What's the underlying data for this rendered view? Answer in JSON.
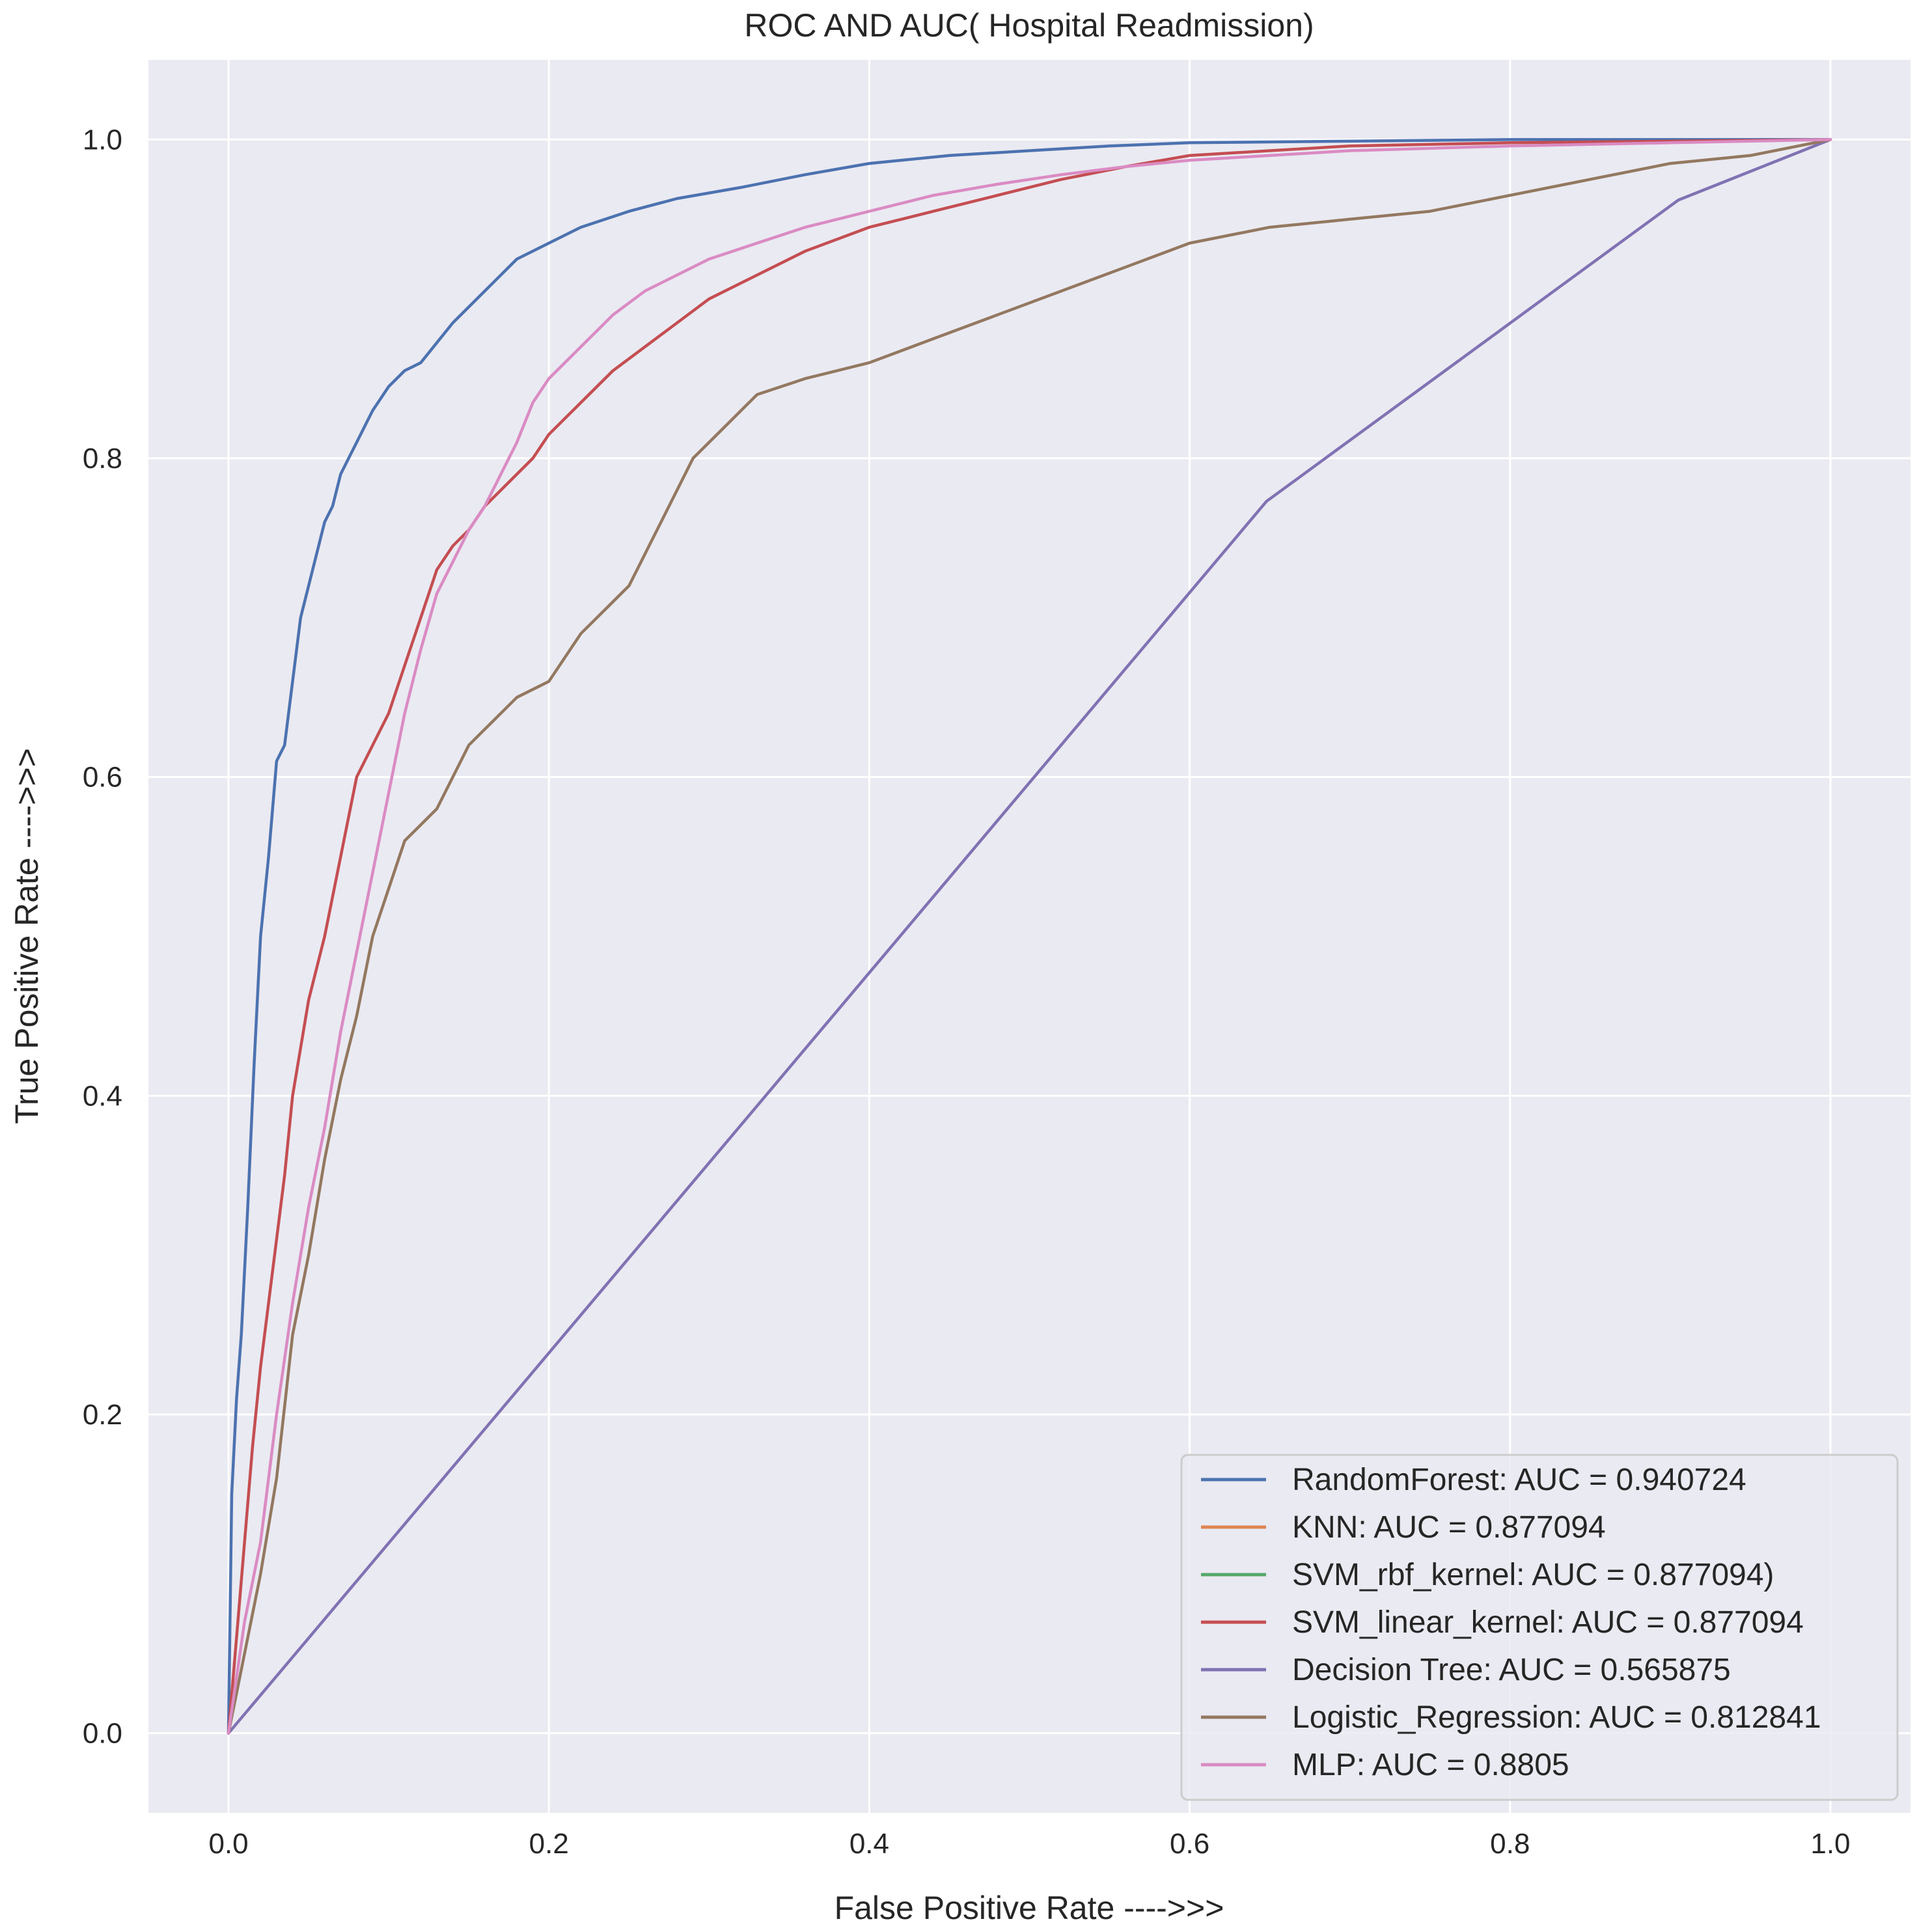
{
  "chart_data": {
    "type": "line",
    "title": "ROC AND AUC( Hospital Readmission)",
    "xlabel": "False Positive Rate ---->>>",
    "ylabel": "True Positive Rate ---->>>",
    "xlim": [
      -0.05,
      1.05
    ],
    "ylim": [
      -0.05,
      1.05
    ],
    "xticks": [
      0.0,
      0.2,
      0.4,
      0.6,
      0.8,
      1.0
    ],
    "yticks": [
      0.0,
      0.2,
      0.4,
      0.6,
      0.8,
      1.0
    ],
    "xtick_labels": [
      "0.0",
      "0.2",
      "0.4",
      "0.6",
      "0.8",
      "1.0"
    ],
    "ytick_labels": [
      "0.0",
      "0.2",
      "0.4",
      "0.6",
      "0.8",
      "1.0"
    ],
    "grid": true,
    "legend_position": "lower-right",
    "background": "#eaeaf2",
    "series": [
      {
        "name": "RandomForest: AUC = 0.940724",
        "color": "#4c72b0",
        "x": [
          0.0,
          0.002,
          0.005,
          0.008,
          0.012,
          0.016,
          0.02,
          0.025,
          0.03,
          0.035,
          0.04,
          0.045,
          0.05,
          0.055,
          0.06,
          0.065,
          0.07,
          0.075,
          0.08,
          0.09,
          0.1,
          0.11,
          0.12,
          0.14,
          0.16,
          0.18,
          0.2,
          0.22,
          0.25,
          0.28,
          0.32,
          0.36,
          0.4,
          0.45,
          0.5,
          0.55,
          0.6,
          0.7,
          0.8,
          1.0
        ],
        "y": [
          0.0,
          0.15,
          0.21,
          0.25,
          0.33,
          0.42,
          0.5,
          0.55,
          0.61,
          0.62,
          0.66,
          0.7,
          0.72,
          0.74,
          0.76,
          0.77,
          0.79,
          0.8,
          0.81,
          0.83,
          0.845,
          0.855,
          0.86,
          0.885,
          0.905,
          0.925,
          0.935,
          0.945,
          0.955,
          0.963,
          0.97,
          0.978,
          0.985,
          0.99,
          0.993,
          0.996,
          0.998,
          0.999,
          1.0,
          1.0
        ]
      },
      {
        "name": "KNN: AUC = 0.877094",
        "color": "#dd8452",
        "x": [],
        "y": []
      },
      {
        "name": "SVM_rbf_kernel: AUC = 0.877094)",
        "color": "#55a868",
        "x": [],
        "y": []
      },
      {
        "name": "SVM_linear_kernel: AUC = 0.877094",
        "color": "#c44e52",
        "x": [
          0.0,
          0.005,
          0.01,
          0.015,
          0.02,
          0.025,
          0.03,
          0.035,
          0.04,
          0.045,
          0.05,
          0.06,
          0.07,
          0.08,
          0.09,
          0.1,
          0.11,
          0.12,
          0.13,
          0.14,
          0.15,
          0.16,
          0.17,
          0.18,
          0.19,
          0.2,
          0.22,
          0.24,
          0.26,
          0.28,
          0.3,
          0.33,
          0.36,
          0.4,
          0.44,
          0.48,
          0.52,
          0.56,
          0.6,
          0.65,
          0.7,
          0.8,
          0.9,
          1.0
        ],
        "y": [
          0.0,
          0.06,
          0.12,
          0.18,
          0.23,
          0.27,
          0.31,
          0.35,
          0.4,
          0.43,
          0.46,
          0.5,
          0.55,
          0.6,
          0.62,
          0.64,
          0.67,
          0.7,
          0.73,
          0.745,
          0.755,
          0.77,
          0.78,
          0.79,
          0.8,
          0.815,
          0.835,
          0.855,
          0.87,
          0.885,
          0.9,
          0.915,
          0.93,
          0.945,
          0.955,
          0.965,
          0.975,
          0.983,
          0.99,
          0.993,
          0.996,
          0.998,
          0.999,
          1.0
        ]
      },
      {
        "name": "Decision Tree: AUC = 0.565875",
        "color": "#8172b3",
        "x": [
          0.0,
          0.648,
          0.905,
          1.0
        ],
        "y": [
          0.0,
          0.773,
          0.962,
          1.0
        ]
      },
      {
        "name": "Logistic_Regression: AUC = 0.812841",
        "color": "#937860",
        "x": [
          0.0,
          0.01,
          0.02,
          0.03,
          0.04,
          0.05,
          0.06,
          0.07,
          0.08,
          0.09,
          0.1,
          0.11,
          0.12,
          0.13,
          0.14,
          0.15,
          0.16,
          0.17,
          0.18,
          0.2,
          0.22,
          0.24,
          0.25,
          0.27,
          0.29,
          0.31,
          0.33,
          0.36,
          0.4,
          0.44,
          0.48,
          0.52,
          0.56,
          0.6,
          0.65,
          0.7,
          0.75,
          0.8,
          0.85,
          0.9,
          0.95,
          1.0
        ],
        "y": [
          0.0,
          0.05,
          0.1,
          0.16,
          0.25,
          0.3,
          0.36,
          0.41,
          0.45,
          0.5,
          0.53,
          0.56,
          0.57,
          0.58,
          0.6,
          0.62,
          0.63,
          0.64,
          0.65,
          0.66,
          0.69,
          0.71,
          0.72,
          0.76,
          0.8,
          0.82,
          0.84,
          0.85,
          0.86,
          0.875,
          0.89,
          0.905,
          0.92,
          0.935,
          0.945,
          0.95,
          0.955,
          0.965,
          0.975,
          0.985,
          0.99,
          1.0
        ]
      },
      {
        "name": "MLP: AUC = 0.8805",
        "color": "#da8bc3",
        "x": [
          0.0,
          0.01,
          0.02,
          0.03,
          0.04,
          0.05,
          0.06,
          0.07,
          0.08,
          0.09,
          0.1,
          0.11,
          0.12,
          0.13,
          0.14,
          0.15,
          0.16,
          0.17,
          0.18,
          0.19,
          0.2,
          0.22,
          0.24,
          0.26,
          0.28,
          0.3,
          0.33,
          0.36,
          0.4,
          0.44,
          0.48,
          0.52,
          0.56,
          0.6,
          0.65,
          0.7,
          0.8,
          0.9,
          1.0
        ],
        "y": [
          0.0,
          0.07,
          0.12,
          0.2,
          0.27,
          0.33,
          0.38,
          0.44,
          0.49,
          0.54,
          0.59,
          0.64,
          0.68,
          0.715,
          0.735,
          0.755,
          0.77,
          0.79,
          0.81,
          0.835,
          0.85,
          0.87,
          0.89,
          0.905,
          0.915,
          0.925,
          0.935,
          0.945,
          0.955,
          0.965,
          0.972,
          0.978,
          0.983,
          0.987,
          0.99,
          0.993,
          0.996,
          0.998,
          1.0
        ]
      }
    ]
  }
}
